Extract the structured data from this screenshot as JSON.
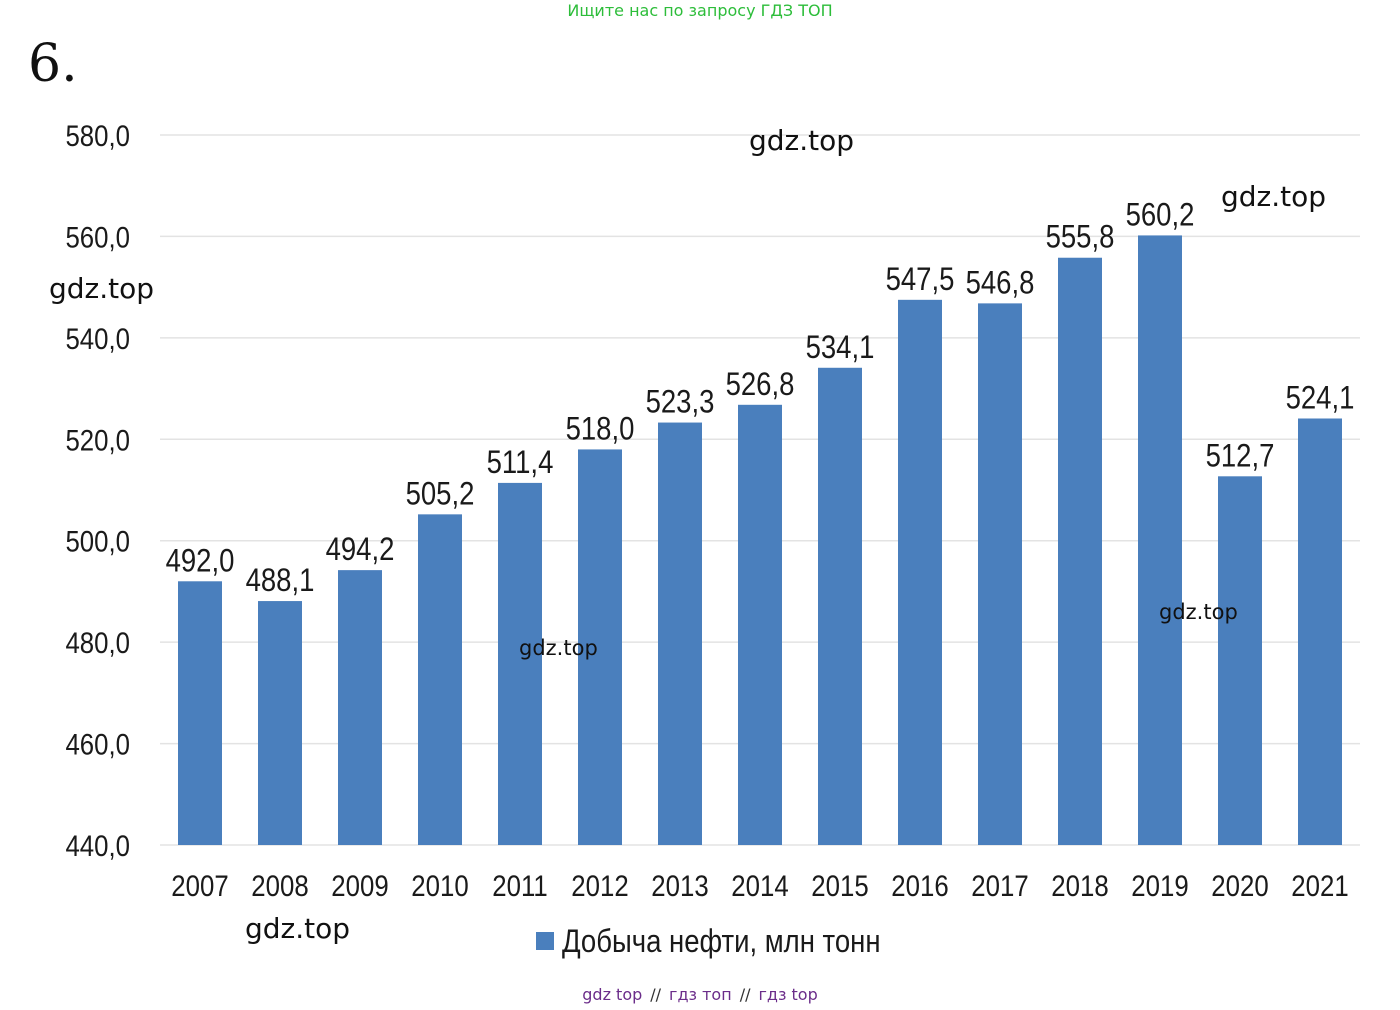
{
  "header": {
    "search_note": "Ищите нас по запросу ГДЗ ТОП",
    "task_number": "6."
  },
  "watermarks": [
    "gdz.top",
    "gdz.top",
    "gdz.top",
    "gdz.top",
    "gdz.top",
    "gdz.top"
  ],
  "footer": {
    "part1": "gdz top",
    "sep": "//",
    "part2": "гдз топ",
    "part3": "гдз top"
  },
  "colors": {
    "bar": "#4a7fbd",
    "grid": "#e3e3e3",
    "text": "#1a1a1a"
  },
  "chart_data": {
    "type": "bar",
    "title": "",
    "xlabel": "",
    "ylabel": "",
    "categories": [
      "2007",
      "2008",
      "2009",
      "2010",
      "2011",
      "2012",
      "2013",
      "2014",
      "2015",
      "2016",
      "2017",
      "2018",
      "2019",
      "2020",
      "2021"
    ],
    "values": [
      492.0,
      488.1,
      494.2,
      505.2,
      511.4,
      518.0,
      523.3,
      526.8,
      534.1,
      547.5,
      546.8,
      555.8,
      560.2,
      512.7,
      524.1
    ],
    "value_labels": [
      "492,0",
      "488,1",
      "494,2",
      "505,2",
      "511,4",
      "518,0",
      "523,3",
      "526,8",
      "534,1",
      "547,5",
      "546,8",
      "555,8",
      "560,2",
      "512,7",
      "524,1"
    ],
    "ylim": [
      440,
      580
    ],
    "y_ticks": [
      440,
      460,
      480,
      500,
      520,
      540,
      560,
      580
    ],
    "y_tick_labels": [
      "440,0",
      "460,0",
      "480,0",
      "500,0",
      "520,0",
      "540,0",
      "560,0",
      "580,0"
    ],
    "grid": true,
    "legend": {
      "label": "Добыча нефти, млн тонн",
      "position": "bottom-center"
    }
  }
}
